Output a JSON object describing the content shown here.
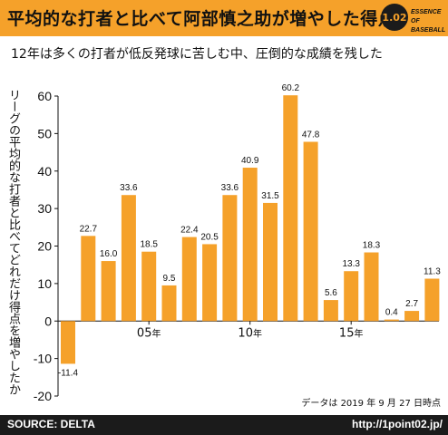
{
  "header": {
    "title": "平均的な打者と比べて阿部慎之助が増やした得点",
    "logo_number": "1.02",
    "logo_line1": "ESSENCE OF",
    "logo_line2": "BASEBALL"
  },
  "subtitle": "12年は多くの打者が低反発球に苦しむ中、圧倒的な成績を残した",
  "note": "データは 2019 年 9 月 27 日時点",
  "footer": {
    "source": "SOURCE: DELTA",
    "url": "http://1point02.jp/"
  },
  "colors": {
    "bar": "#f5a12a",
    "header": "#f5a12a",
    "footer": "#1b1b1b"
  },
  "chart_data": {
    "type": "bar",
    "ylabel": "リーグの平均的な打者と比べてどれだけ得点を増やしたか",
    "ylim": [
      -20,
      60
    ],
    "yticks": [
      60,
      50,
      40,
      30,
      20,
      10,
      0,
      -10,
      -20
    ],
    "grid": false,
    "categories": [
      "01",
      "02",
      "03",
      "04",
      "05",
      "06",
      "07",
      "08",
      "09",
      "10",
      "11",
      "12",
      "13",
      "14",
      "15",
      "16",
      "17",
      "18",
      "19"
    ],
    "values": [
      -11.4,
      22.7,
      16.0,
      33.6,
      18.5,
      9.5,
      22.4,
      20.5,
      33.6,
      40.9,
      31.5,
      60.2,
      47.8,
      5.6,
      13.3,
      18.3,
      0.4,
      2.7,
      11.3
    ],
    "value_labels": [
      "-11.4",
      "22.7",
      "16.0",
      "33.6",
      "18.5",
      "9.5",
      "22.4",
      "20.5",
      "33.6",
      "40.9",
      "31.5",
      "60.2",
      "47.8",
      "5.6",
      "13.3",
      "18.3",
      "0.4",
      "2.7",
      "11.3"
    ],
    "xtick_labels": [
      {
        "category": "05",
        "label": "05"
      },
      {
        "category": "10",
        "label": "10"
      },
      {
        "category": "15",
        "label": "15"
      }
    ],
    "xtick_suffix": "年"
  }
}
